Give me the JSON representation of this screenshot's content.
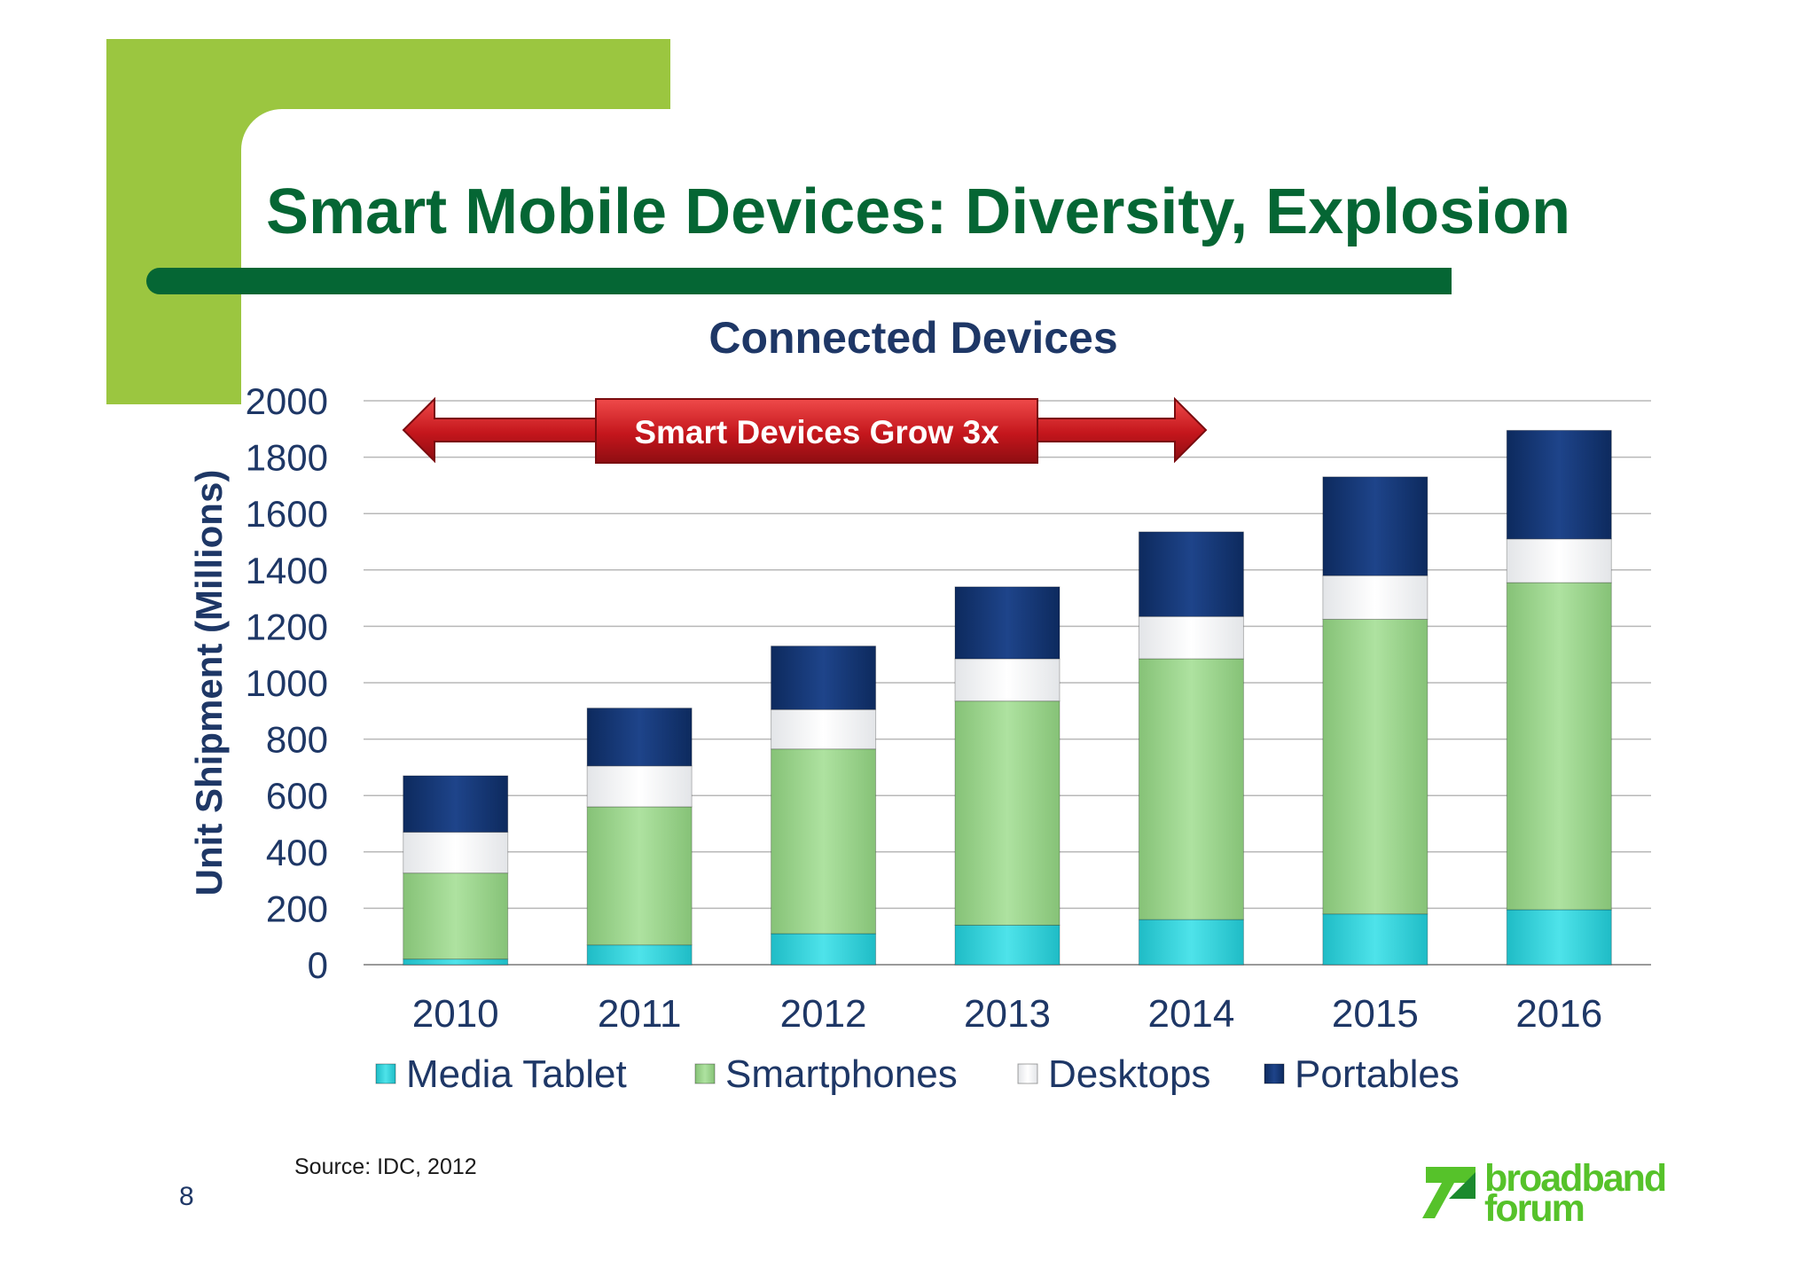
{
  "slide": {
    "title": "Smart Mobile Devices: Diversity, Explosion",
    "page_number": "8",
    "source": "Source: IDC, 2012",
    "logo_text": [
      "broadband",
      "forum"
    ]
  },
  "colors": {
    "title_green": "#056634",
    "accent_lime": "#9bc640",
    "navy": "#1e3766",
    "media_tablet": "#2fd3dc",
    "smartphones": "#9ed48f",
    "desktops": "#f1f2f4",
    "portables": "#12336e",
    "banner_red": "#c4161c",
    "logo_green": "#56c22a"
  },
  "chart_data": {
    "type": "bar",
    "stacked": true,
    "title": "Connected Devices",
    "ylabel": "Unit Shipment (Millions)",
    "xlabel": "",
    "ylim": [
      0,
      2000
    ],
    "yticks": [
      0,
      200,
      400,
      600,
      800,
      1000,
      1200,
      1400,
      1600,
      1800,
      2000
    ],
    "grid": true,
    "legend_position": "bottom",
    "categories": [
      "2010",
      "2011",
      "2012",
      "2013",
      "2014",
      "2015",
      "2016"
    ],
    "series": [
      {
        "name": "Media Tablet",
        "color": "#2fd3dc",
        "values": [
          20,
          70,
          110,
          140,
          160,
          180,
          195
        ]
      },
      {
        "name": "Smartphones",
        "color": "#9ed48f",
        "values": [
          305,
          490,
          655,
          795,
          925,
          1045,
          1160
        ]
      },
      {
        "name": "Desktops",
        "color": "#f1f2f4",
        "values": [
          145,
          145,
          140,
          150,
          150,
          155,
          155
        ]
      },
      {
        "name": "Portables",
        "color": "#12336e",
        "values": [
          200,
          205,
          225,
          255,
          300,
          350,
          385
        ]
      }
    ],
    "annotation": {
      "text": "Smart Devices Grow 3x",
      "x_start": "2010",
      "x_end": "2014"
    }
  }
}
